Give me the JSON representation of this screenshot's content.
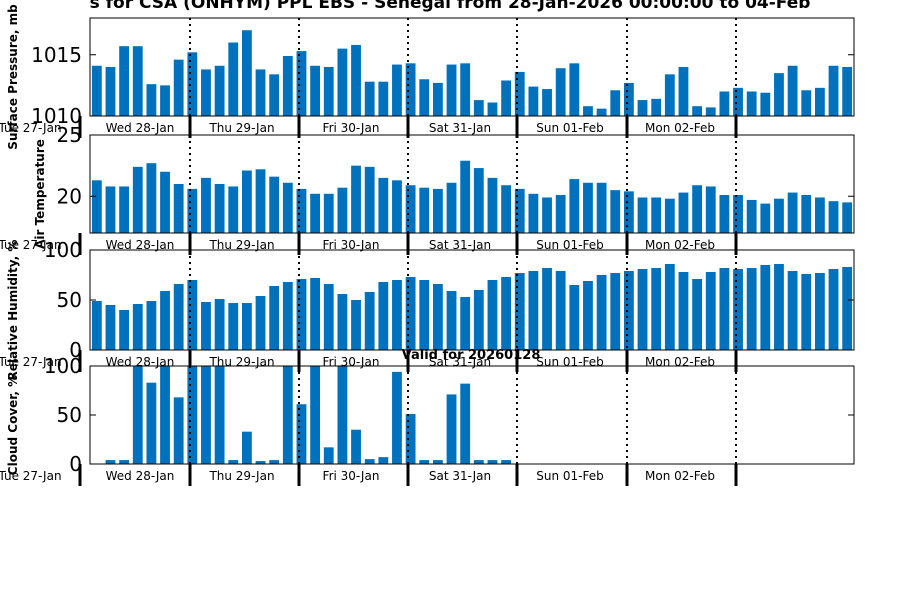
{
  "title": "s for CSA (ONHYM) PPL EBS  - Senegal from 28-Jan-2026 00:00:00 to 04-Feb",
  "day_labels": [
    "Tue 27-Jan",
    "Wed 28-Jan",
    "Thu 29-Jan",
    "Fri 30-Jan",
    "Sat 31-Jan",
    "Sun 01-Feb",
    "Mon 02-Feb"
  ],
  "bar_color": "#0072bd",
  "chart_data": [
    {
      "type": "bar",
      "ylabel": "Surface Pressure, mb",
      "ylim": [
        1010,
        1018
      ],
      "yticks": [
        1010,
        1015
      ],
      "ytick_labels": [
        "1010",
        "1015"
      ],
      "subtitle": "",
      "values": [
        1014.1,
        1014.0,
        1015.7,
        1015.7,
        1012.6,
        1012.5,
        1014.6,
        1015.2,
        1013.8,
        1014.1,
        1016.0,
        1017.0,
        1013.8,
        1013.4,
        1014.9,
        1015.3,
        1014.1,
        1014.0,
        1015.5,
        1015.8,
        1012.8,
        1012.8,
        1014.2,
        1014.3,
        1013.0,
        1012.7,
        1014.2,
        1014.3,
        1011.3,
        1011.1,
        1012.9,
        1013.6,
        1012.4,
        1012.2,
        1013.9,
        1014.3,
        1010.8,
        1010.6,
        1012.1,
        1012.7,
        1011.3,
        1011.4,
        1013.4,
        1014.0,
        1010.8,
        1010.7,
        1012.0,
        1012.3,
        1012.0,
        1011.9,
        1013.5,
        1014.1,
        1012.1,
        1012.3,
        1014.1,
        1014.0
      ]
    },
    {
      "type": "bar",
      "ylabel": "Air Temperature",
      "ylim": [
        17,
        25
      ],
      "yticks": [
        20,
        25
      ],
      "ytick_labels": [
        "20",
        "25"
      ],
      "subtitle": "",
      "values": [
        21.3,
        20.8,
        20.8,
        22.4,
        22.7,
        22.0,
        21.0,
        20.6,
        21.5,
        21.0,
        20.8,
        22.1,
        22.2,
        21.6,
        21.1,
        20.6,
        20.2,
        20.2,
        20.7,
        22.5,
        22.4,
        21.5,
        21.3,
        20.9,
        20.7,
        20.6,
        21.1,
        22.9,
        22.3,
        21.5,
        20.9,
        20.6,
        20.2,
        19.9,
        20.1,
        21.4,
        21.1,
        21.1,
        20.5,
        20.4,
        19.9,
        19.9,
        19.8,
        20.3,
        20.9,
        20.8,
        20.1,
        20.1,
        19.7,
        19.4,
        19.8,
        20.3,
        20.1,
        19.9,
        19.6,
        19.5
      ]
    },
    {
      "type": "bar",
      "ylabel": "Relative Humidity, %",
      "ylim": [
        0,
        100
      ],
      "yticks": [
        0,
        50,
        100
      ],
      "ytick_labels": [
        "0",
        "50",
        "100"
      ],
      "subtitle": "",
      "values": [
        49,
        45,
        40,
        46,
        49,
        59,
        66,
        70,
        48,
        51,
        47,
        47,
        54,
        64,
        68,
        71,
        72,
        66,
        56,
        50,
        58,
        68,
        70,
        73,
        70,
        66,
        59,
        53,
        60,
        70,
        73,
        77,
        79,
        82,
        79,
        65,
        69,
        75,
        77,
        79,
        81,
        82,
        86,
        78,
        71,
        78,
        82,
        81,
        82,
        85,
        86,
        79,
        76,
        77,
        81,
        83
      ]
    },
    {
      "type": "bar",
      "ylabel": "Cloud Cover, %",
      "ylim": [
        0,
        100
      ],
      "yticks": [
        0,
        50,
        100
      ],
      "ytick_labels": [
        "0",
        "50",
        "100"
      ],
      "subtitle": "Valid for 20260128",
      "values": [
        0,
        4,
        4,
        100,
        83,
        100,
        68,
        100,
        100,
        100,
        4,
        33,
        3,
        4,
        100,
        61,
        100,
        17,
        100,
        35,
        5,
        7,
        94,
        51,
        4,
        4,
        71,
        82,
        4,
        4,
        4,
        0,
        0,
        0,
        0,
        0,
        0,
        0,
        0,
        0,
        0,
        0,
        0,
        0,
        0,
        0,
        0,
        0,
        0,
        0,
        0,
        0,
        0,
        0,
        0,
        0
      ]
    }
  ]
}
